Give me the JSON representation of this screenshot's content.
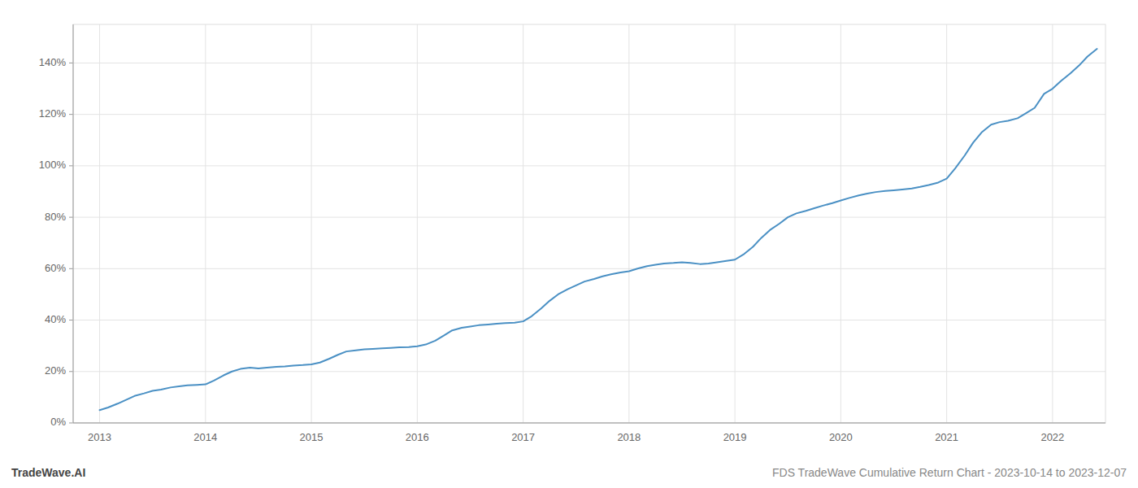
{
  "chart_data": {
    "type": "line",
    "color": "#4a90c4",
    "grid": true,
    "x": [
      2013.0,
      2013.08,
      2013.17,
      2013.25,
      2013.33,
      2013.42,
      2013.5,
      2013.58,
      2013.67,
      2013.75,
      2013.83,
      2013.92,
      2014.0,
      2014.08,
      2014.17,
      2014.25,
      2014.33,
      2014.42,
      2014.5,
      2014.58,
      2014.67,
      2014.75,
      2014.83,
      2014.92,
      2015.0,
      2015.08,
      2015.17,
      2015.25,
      2015.33,
      2015.42,
      2015.5,
      2015.58,
      2015.67,
      2015.75,
      2015.83,
      2015.92,
      2016.0,
      2016.08,
      2016.17,
      2016.25,
      2016.33,
      2016.42,
      2016.5,
      2016.58,
      2016.67,
      2016.75,
      2016.83,
      2016.92,
      2017.0,
      2017.08,
      2017.17,
      2017.25,
      2017.33,
      2017.42,
      2017.5,
      2017.58,
      2017.67,
      2017.75,
      2017.83,
      2017.92,
      2018.0,
      2018.08,
      2018.17,
      2018.25,
      2018.33,
      2018.42,
      2018.5,
      2018.58,
      2018.67,
      2018.75,
      2018.83,
      2018.92,
      2019.0,
      2019.08,
      2019.17,
      2019.25,
      2019.33,
      2019.42,
      2019.5,
      2019.58,
      2019.67,
      2019.75,
      2019.83,
      2019.92,
      2020.0,
      2020.08,
      2020.17,
      2020.25,
      2020.33,
      2020.42,
      2020.5,
      2020.58,
      2020.67,
      2020.75,
      2020.83,
      2020.92,
      2021.0,
      2021.08,
      2021.17,
      2021.25,
      2021.33,
      2021.42,
      2021.5,
      2021.58,
      2021.67,
      2021.75,
      2021.83,
      2021.92,
      2022.0,
      2022.08,
      2022.17,
      2022.25,
      2022.33,
      2022.42
    ],
    "values": [
      5.0,
      6.0,
      7.5,
      9.0,
      10.5,
      11.5,
      12.5,
      13.0,
      13.8,
      14.2,
      14.6,
      14.8,
      15.0,
      16.5,
      18.5,
      20.0,
      21.0,
      21.5,
      21.2,
      21.5,
      21.8,
      22.0,
      22.3,
      22.5,
      22.8,
      23.5,
      25.0,
      26.5,
      27.8,
      28.2,
      28.6,
      28.8,
      29.0,
      29.2,
      29.4,
      29.5,
      29.8,
      30.5,
      32.0,
      34.0,
      36.0,
      37.0,
      37.5,
      38.0,
      38.3,
      38.6,
      38.8,
      39.0,
      39.5,
      41.5,
      44.5,
      47.5,
      50.0,
      52.0,
      53.5,
      55.0,
      56.0,
      57.0,
      57.8,
      58.5,
      59.0,
      60.0,
      61.0,
      61.5,
      62.0,
      62.2,
      62.5,
      62.2,
      61.8,
      62.0,
      62.5,
      63.0,
      63.5,
      65.5,
      68.5,
      72.0,
      75.0,
      77.5,
      80.0,
      81.5,
      82.5,
      83.5,
      84.5,
      85.5,
      86.5,
      87.5,
      88.5,
      89.2,
      89.8,
      90.2,
      90.5,
      90.8,
      91.2,
      91.8,
      92.5,
      93.5,
      95.0,
      99.0,
      104.0,
      109.0,
      113.0,
      116.0,
      117.0,
      117.5,
      118.5,
      120.5,
      122.5,
      128.0,
      130.0,
      133.0,
      136.0,
      139.0,
      142.5,
      145.5
    ],
    "xlim": [
      2012.75,
      2022.5
    ],
    "ylim": [
      0,
      155
    ],
    "xticks": [
      2013,
      2014,
      2015,
      2016,
      2017,
      2018,
      2019,
      2020,
      2021,
      2022
    ],
    "yticks": [
      {
        "value": 0,
        "label": "0%"
      },
      {
        "value": 20,
        "label": "20%"
      },
      {
        "value": 40,
        "label": "40%"
      },
      {
        "value": 60,
        "label": "60%"
      },
      {
        "value": 80,
        "label": "80%"
      },
      {
        "value": 100,
        "label": "100%"
      },
      {
        "value": 120,
        "label": "120%"
      },
      {
        "value": 140,
        "label": "140%"
      }
    ],
    "annotations": [
      "TradeWave.AI",
      "FDS TradeWave Cumulative Return Chart - 2023-10-14 to 2023-12-07"
    ]
  }
}
